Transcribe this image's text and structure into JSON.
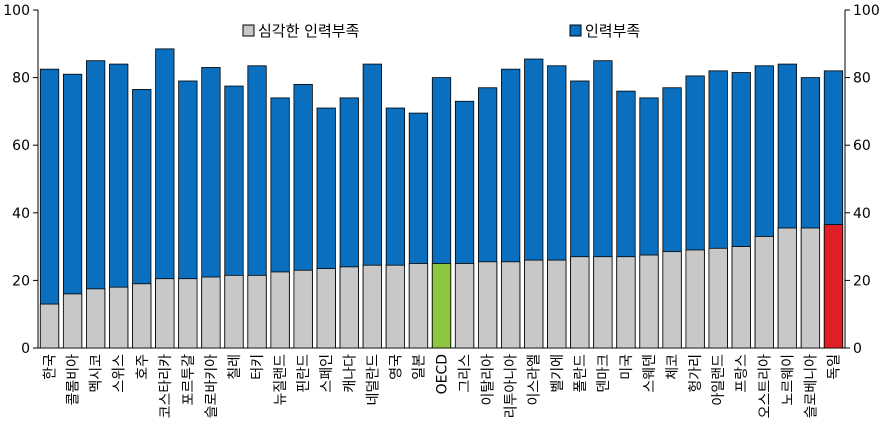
{
  "chart_data": {
    "type": "bar",
    "stacked": false,
    "overlay": true,
    "categories": [
      "한국",
      "콜롬비아",
      "멕시코",
      "스위스",
      "호주",
      "코스타리카",
      "포르투갈",
      "슬로바키아",
      "칠레",
      "터키",
      "뉴질랜드",
      "핀란드",
      "스페인",
      "캐나다",
      "네덜란드",
      "영국",
      "일본",
      "OECD",
      "그리스",
      "이탈리아",
      "리투아니아",
      "이스라엘",
      "벨기에",
      "폴란드",
      "덴마크",
      "미국",
      "스웨덴",
      "체코",
      "헝가리",
      "아일랜드",
      "프랑스",
      "오스트리아",
      "노르웨이",
      "슬로베니아",
      "독일"
    ],
    "series": [
      {
        "name": "심각한 인력부족",
        "values": [
          13,
          16,
          17.5,
          18,
          19,
          20.5,
          20.5,
          21,
          21.5,
          21.5,
          22.5,
          23,
          23.5,
          24,
          24.5,
          24.5,
          25,
          25,
          25,
          25.5,
          25.5,
          26,
          26,
          27,
          27,
          27,
          27.5,
          28.5,
          29,
          29.5,
          30,
          33,
          35.5,
          35.5,
          36.5
        ]
      },
      {
        "name": "인력부족",
        "values": [
          82.5,
          81,
          85,
          84,
          76.5,
          88.5,
          79,
          83,
          77.5,
          83.5,
          74,
          78,
          71,
          74,
          84,
          71,
          69.5,
          80,
          73,
          77,
          82.5,
          85.5,
          83.5,
          79,
          85,
          76,
          74,
          77,
          80.5,
          82,
          81.5,
          83.5,
          84,
          80,
          82
        ]
      }
    ],
    "colors": {
      "severe": "#c8c8c8",
      "shortage": "#0a6fbf",
      "oecd": "#8dc63f",
      "highlight": "#e11f26"
    },
    "ylim": [
      0,
      100
    ],
    "yticks": [
      "0",
      "20",
      "40",
      "60",
      "80",
      "100"
    ],
    "grid": false,
    "legend_position": "top",
    "xlabel": "",
    "ylabel": ""
  }
}
